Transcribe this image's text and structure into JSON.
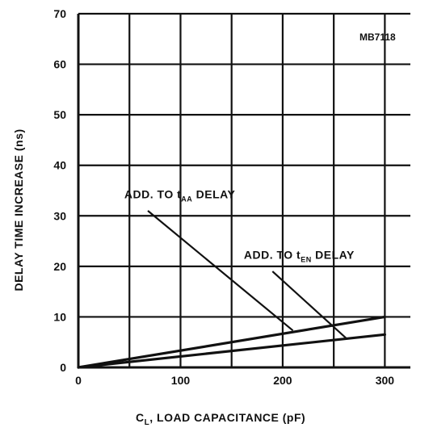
{
  "chart_data": {
    "type": "line",
    "part_label": "MB7118",
    "xlabel": "C",
    "xlabel_sub": "L",
    "xlabel_rest": ", LOAD CAPACITANCE (pF)",
    "ylabel": "DELAY TIME INCREASE (ns)",
    "xlim": [
      0,
      325
    ],
    "ylim": [
      0,
      70
    ],
    "x_ticks": [
      {
        "value": 0,
        "label": "0"
      },
      {
        "value": 100,
        "label": "100"
      },
      {
        "value": 200,
        "label": "200"
      },
      {
        "value": 300,
        "label": "300"
      }
    ],
    "y_ticks": [
      {
        "value": 0,
        "label": "0"
      },
      {
        "value": 10,
        "label": "10"
      },
      {
        "value": 20,
        "label": "20"
      },
      {
        "value": 30,
        "label": "30"
      },
      {
        "value": 40,
        "label": "40"
      },
      {
        "value": 50,
        "label": "50"
      },
      {
        "value": 60,
        "label": "60"
      },
      {
        "value": 70,
        "label": "70"
      }
    ],
    "x_grid": [
      0,
      50,
      100,
      150,
      200,
      250,
      300
    ],
    "y_grid": [
      0,
      10,
      20,
      30,
      40,
      50,
      60,
      70
    ],
    "grid": true,
    "series": [
      {
        "x": [
          0,
          300
        ],
        "y": [
          0,
          10
        ]
      },
      {
        "x": [
          0,
          300
        ],
        "y": [
          0,
          6.5
        ]
      }
    ],
    "annotations": [
      {
        "text": "ADD. TO t",
        "sub": "AA",
        "rest": " DELAY",
        "x": 45,
        "y": 33.5,
        "leader": {
          "from": [
            68,
            31
          ],
          "to": [
            210,
            7.3
          ]
        }
      },
      {
        "text": "ADD. TO t",
        "sub": "EN",
        "rest": " DELAY",
        "x": 162,
        "y": 21.5,
        "leader": {
          "from": [
            190,
            19
          ],
          "to": [
            262,
            5.8
          ]
        }
      }
    ],
    "colors": {
      "line": "#111111",
      "grid": "#111111",
      "background": "#ffffff"
    }
  }
}
